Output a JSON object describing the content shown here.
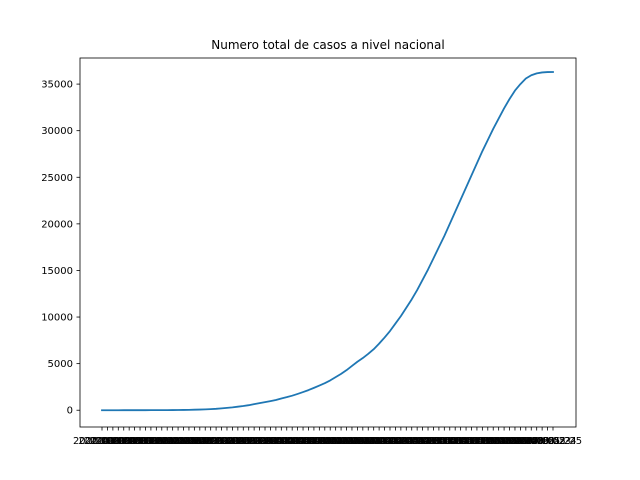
{
  "chart_data": {
    "type": "line",
    "title": "Numero total de casos a nivel nacional",
    "xlabel": "",
    "ylabel": "",
    "ylim": [
      -1800,
      37800
    ],
    "yticks": [
      0,
      5000,
      10000,
      15000,
      20000,
      25000,
      30000,
      35000
    ],
    "x_tick_labels_overlapping": "2020-03-03 … 2020-05-10",
    "line_color": "#1f77b4",
    "grid": false,
    "legend": "none",
    "series": [
      {
        "values": [
          0,
          0,
          1,
          1,
          2,
          3,
          4,
          5,
          6,
          8,
          10,
          12,
          15,
          20,
          25,
          30,
          40,
          55,
          70,
          90,
          115,
          150,
          200,
          255,
          310,
          380,
          450,
          540,
          650,
          760,
          870,
          980,
          1100,
          1260,
          1400,
          1560,
          1750,
          1950,
          2160,
          2400,
          2650,
          2900,
          3200,
          3550,
          3900,
          4300,
          4750,
          5200,
          5600,
          6050,
          6550,
          7150,
          7800,
          8500,
          9300,
          10100,
          11000,
          11900,
          12900,
          14000,
          15100,
          16300,
          17500,
          18700,
          20000,
          21300,
          22600,
          23900,
          25200,
          26500,
          27800,
          29000,
          30200,
          31300,
          32400,
          33400,
          34300,
          35000,
          35600,
          35950,
          36150,
          36250,
          36290,
          36300
        ]
      }
    ]
  }
}
